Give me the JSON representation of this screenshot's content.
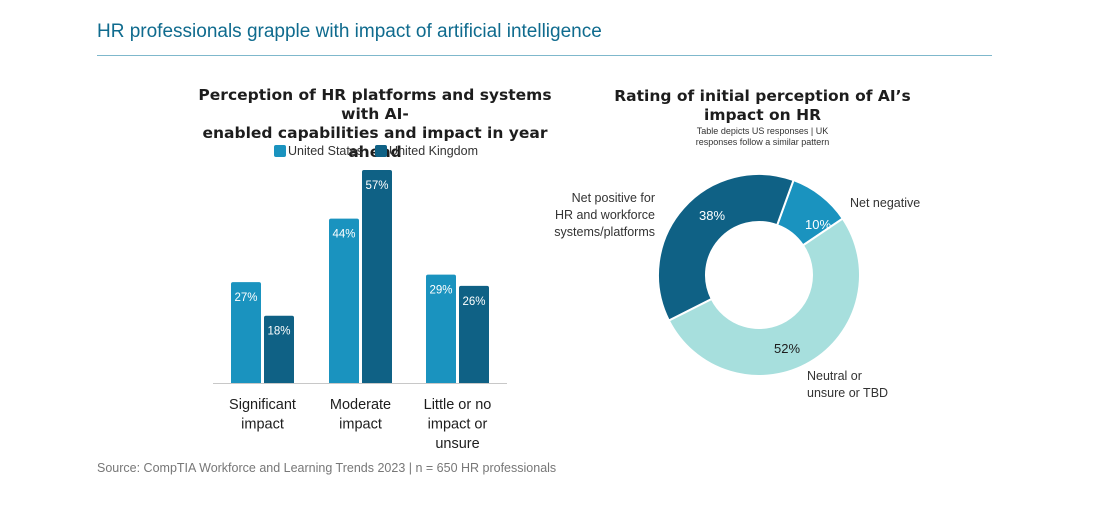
{
  "page": {
    "title": "HR professionals grapple with impact of artificial intelligence",
    "source": "Source: CompTIA Workforce and Learning Trends 2023 | n = 650 HR professionals"
  },
  "colors": {
    "title": "#0f6b8e",
    "us": "#1a93bf",
    "uk": "#0f6185",
    "net_positive": "#0f6185",
    "net_negative": "#1a93bf",
    "neutral": "#a7dfdd"
  },
  "chart_data": [
    {
      "type": "bar",
      "title": "Perception of HR platforms and systems with AI-enabled capabilities and impact in year ahead",
      "title_lines": [
        "Perception of HR platforms and systems with AI-",
        "enabled capabilities and impact in year ahead"
      ],
      "categories": [
        "Significant impact",
        "Moderate impact",
        "Little or no impact or unsure"
      ],
      "category_lines": [
        [
          "Significant",
          "impact"
        ],
        [
          "Moderate",
          "impact"
        ],
        [
          "Little or no",
          "impact or",
          "unsure"
        ]
      ],
      "series": [
        {
          "name": "United States",
          "values": [
            27,
            44,
            29
          ],
          "labels": [
            "27%",
            "44%",
            "29%"
          ]
        },
        {
          "name": "United Kingdom",
          "values": [
            18,
            57,
            26
          ],
          "labels": [
            "18%",
            "57%",
            "26%"
          ]
        }
      ],
      "ylim": [
        0,
        57
      ],
      "legend": "top"
    },
    {
      "type": "pie",
      "title": "Rating of initial perception of AI’s impact on HR",
      "title_lines": [
        "Rating of initial perception of AI’s",
        "impact on HR"
      ],
      "subtitle_lines": [
        "Table depicts US responses | UK",
        "responses follow a similar pattern"
      ],
      "slices": [
        {
          "name": "Net negative",
          "value": 10,
          "label": "10%",
          "name_lines": [
            "Net negative"
          ]
        },
        {
          "name": "Neutral or unsure or TBD",
          "value": 52,
          "label": "52%",
          "name_lines": [
            "Neutral or",
            "unsure or TBD"
          ]
        },
        {
          "name": "Net positive for HR and workforce systems/platforms",
          "value": 38,
          "label": "38%",
          "name_lines": [
            "Net positive for",
            "HR and workforce",
            "systems/platforms"
          ]
        }
      ]
    }
  ]
}
